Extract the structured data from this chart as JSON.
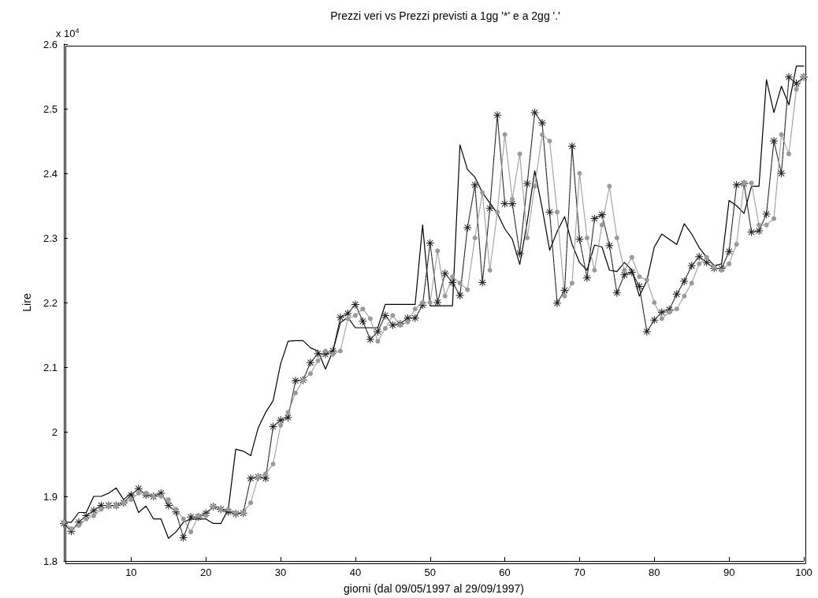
{
  "chart_data": {
    "type": "line",
    "title": "Prezzi veri vs Prezzi previsti a 1gg '*' e a 2gg '.'",
    "xlabel": "giorni (dal 09/05/1997 al 29/09/1997)",
    "ylabel": "Lire",
    "annotations": [
      "x 10$^{4}$"
    ],
    "x": [
      1,
      2,
      3,
      4,
      5,
      6,
      7,
      8,
      9,
      10,
      11,
      12,
      13,
      14,
      15,
      16,
      17,
      18,
      19,
      20,
      21,
      22,
      23,
      24,
      25,
      26,
      27,
      28,
      29,
      30,
      31,
      32,
      33,
      34,
      35,
      36,
      37,
      38,
      39,
      40,
      41,
      42,
      43,
      44,
      45,
      46,
      47,
      48,
      49,
      50,
      51,
      52,
      53,
      54,
      55,
      56,
      57,
      58,
      59,
      60,
      61,
      62,
      63,
      64,
      65,
      66,
      67,
      68,
      69,
      70,
      71,
      72,
      73,
      74,
      75,
      76,
      77,
      78,
      79,
      80,
      81,
      82,
      83,
      84,
      85,
      86,
      87,
      88,
      89,
      90,
      91,
      92,
      93,
      94,
      95,
      96,
      97,
      98,
      99,
      100
    ],
    "series": [
      {
        "color": "#000000",
        "marker": "none",
        "line_style": "solid",
        "values": [
          1.86,
          1.86,
          1.875,
          1.875,
          1.9,
          1.9,
          1.905,
          1.913,
          1.895,
          1.905,
          1.875,
          1.885,
          1.865,
          1.865,
          1.835,
          1.845,
          1.86,
          1.865,
          1.865,
          1.865,
          1.858,
          1.858,
          1.88,
          1.973,
          1.97,
          1.963,
          2.006,
          2.03,
          2.048,
          2.105,
          2.14,
          2.141,
          2.141,
          2.13,
          2.125,
          2.097,
          2.125,
          2.169,
          2.177,
          2.161,
          2.161,
          2.161,
          2.161,
          2.197,
          2.197,
          2.197,
          2.197,
          2.197,
          2.32,
          2.195,
          2.195,
          2.195,
          2.195,
          2.444,
          2.406,
          2.394,
          2.37,
          2.354,
          2.338,
          2.314,
          2.298,
          2.259,
          2.325,
          2.404,
          2.346,
          2.281,
          2.31,
          2.333,
          2.29,
          2.262,
          2.25,
          2.289,
          2.286,
          2.25,
          2.248,
          2.262,
          2.25,
          2.21,
          2.234,
          2.286,
          2.306,
          2.298,
          2.29,
          2.322,
          2.306,
          2.285,
          2.27,
          2.257,
          2.26,
          2.358,
          2.35,
          2.338,
          2.38,
          2.38,
          2.545,
          2.494,
          2.535,
          2.506,
          2.566,
          2.566
        ]
      },
      {
        "color": "#222222",
        "marker": "star",
        "line_style": "dotted",
        "values": [
          1.858,
          1.846,
          1.86,
          1.87,
          1.878,
          1.886,
          1.886,
          1.886,
          1.89,
          1.902,
          1.912,
          1.902,
          1.9,
          1.905,
          1.886,
          1.876,
          1.836,
          1.868,
          1.868,
          1.874,
          1.884,
          1.88,
          1.876,
          1.873,
          1.874,
          1.928,
          1.93,
          1.928,
          2.008,
          2.018,
          2.022,
          2.079,
          2.08,
          2.107,
          2.121,
          2.12,
          2.125,
          2.177,
          2.183,
          2.197,
          2.171,
          2.143,
          2.155,
          2.18,
          2.165,
          2.167,
          2.176,
          2.176,
          2.196,
          2.292,
          2.2,
          2.245,
          2.231,
          2.211,
          2.316,
          2.382,
          2.231,
          2.346,
          2.49,
          2.353,
          2.353,
          2.276,
          2.384,
          2.494,
          2.478,
          2.34,
          2.199,
          2.219,
          2.442,
          2.298,
          2.238,
          2.33,
          2.336,
          2.288,
          2.215,
          2.243,
          2.247,
          2.225,
          2.155,
          2.173,
          2.185,
          2.189,
          2.213,
          2.233,
          2.257,
          2.271,
          2.262,
          2.253,
          2.253,
          2.279,
          2.382,
          2.384,
          2.309,
          2.311,
          2.337,
          2.45,
          2.4,
          2.549,
          2.539,
          2.549
        ]
      },
      {
        "color": "#9a9a9a",
        "marker": "circle",
        "line_style": "dotted",
        "values": [
          1.86,
          1.85,
          1.855,
          1.865,
          1.87,
          1.88,
          1.885,
          1.885,
          1.89,
          1.895,
          1.905,
          1.905,
          1.9,
          1.9,
          1.895,
          1.88,
          1.865,
          1.845,
          1.87,
          1.87,
          1.885,
          1.88,
          1.88,
          1.875,
          1.875,
          1.89,
          1.93,
          1.935,
          1.95,
          2.01,
          2.03,
          2.06,
          2.08,
          2.09,
          2.11,
          2.125,
          2.12,
          2.125,
          2.175,
          2.18,
          2.19,
          2.175,
          2.14,
          2.16,
          2.18,
          2.165,
          2.17,
          2.19,
          2.2,
          2.2,
          2.28,
          2.21,
          2.24,
          2.23,
          2.22,
          2.3,
          2.37,
          2.25,
          2.34,
          2.46,
          2.36,
          2.43,
          2.3,
          2.38,
          2.46,
          2.45,
          2.34,
          2.21,
          2.23,
          2.4,
          2.3,
          2.25,
          2.32,
          2.38,
          2.3,
          2.25,
          2.27,
          2.24,
          2.235,
          2.2,
          2.175,
          2.185,
          2.19,
          2.21,
          2.23,
          2.26,
          2.27,
          2.255,
          2.25,
          2.26,
          2.29,
          2.385,
          2.385,
          2.32,
          2.32,
          2.33,
          2.46,
          2.43,
          2.53,
          2.55
        ]
      }
    ],
    "xlim": [
      1,
      100
    ],
    "xticks": [
      10,
      20,
      30,
      40,
      50,
      60,
      70,
      80,
      90,
      100
    ],
    "ylim": [
      1.8,
      2.6
    ],
    "yticks": [
      1.8,
      1.9,
      2,
      2.1,
      2.2,
      2.3,
      2.4,
      2.5,
      2.6
    ],
    "grid": false
  }
}
